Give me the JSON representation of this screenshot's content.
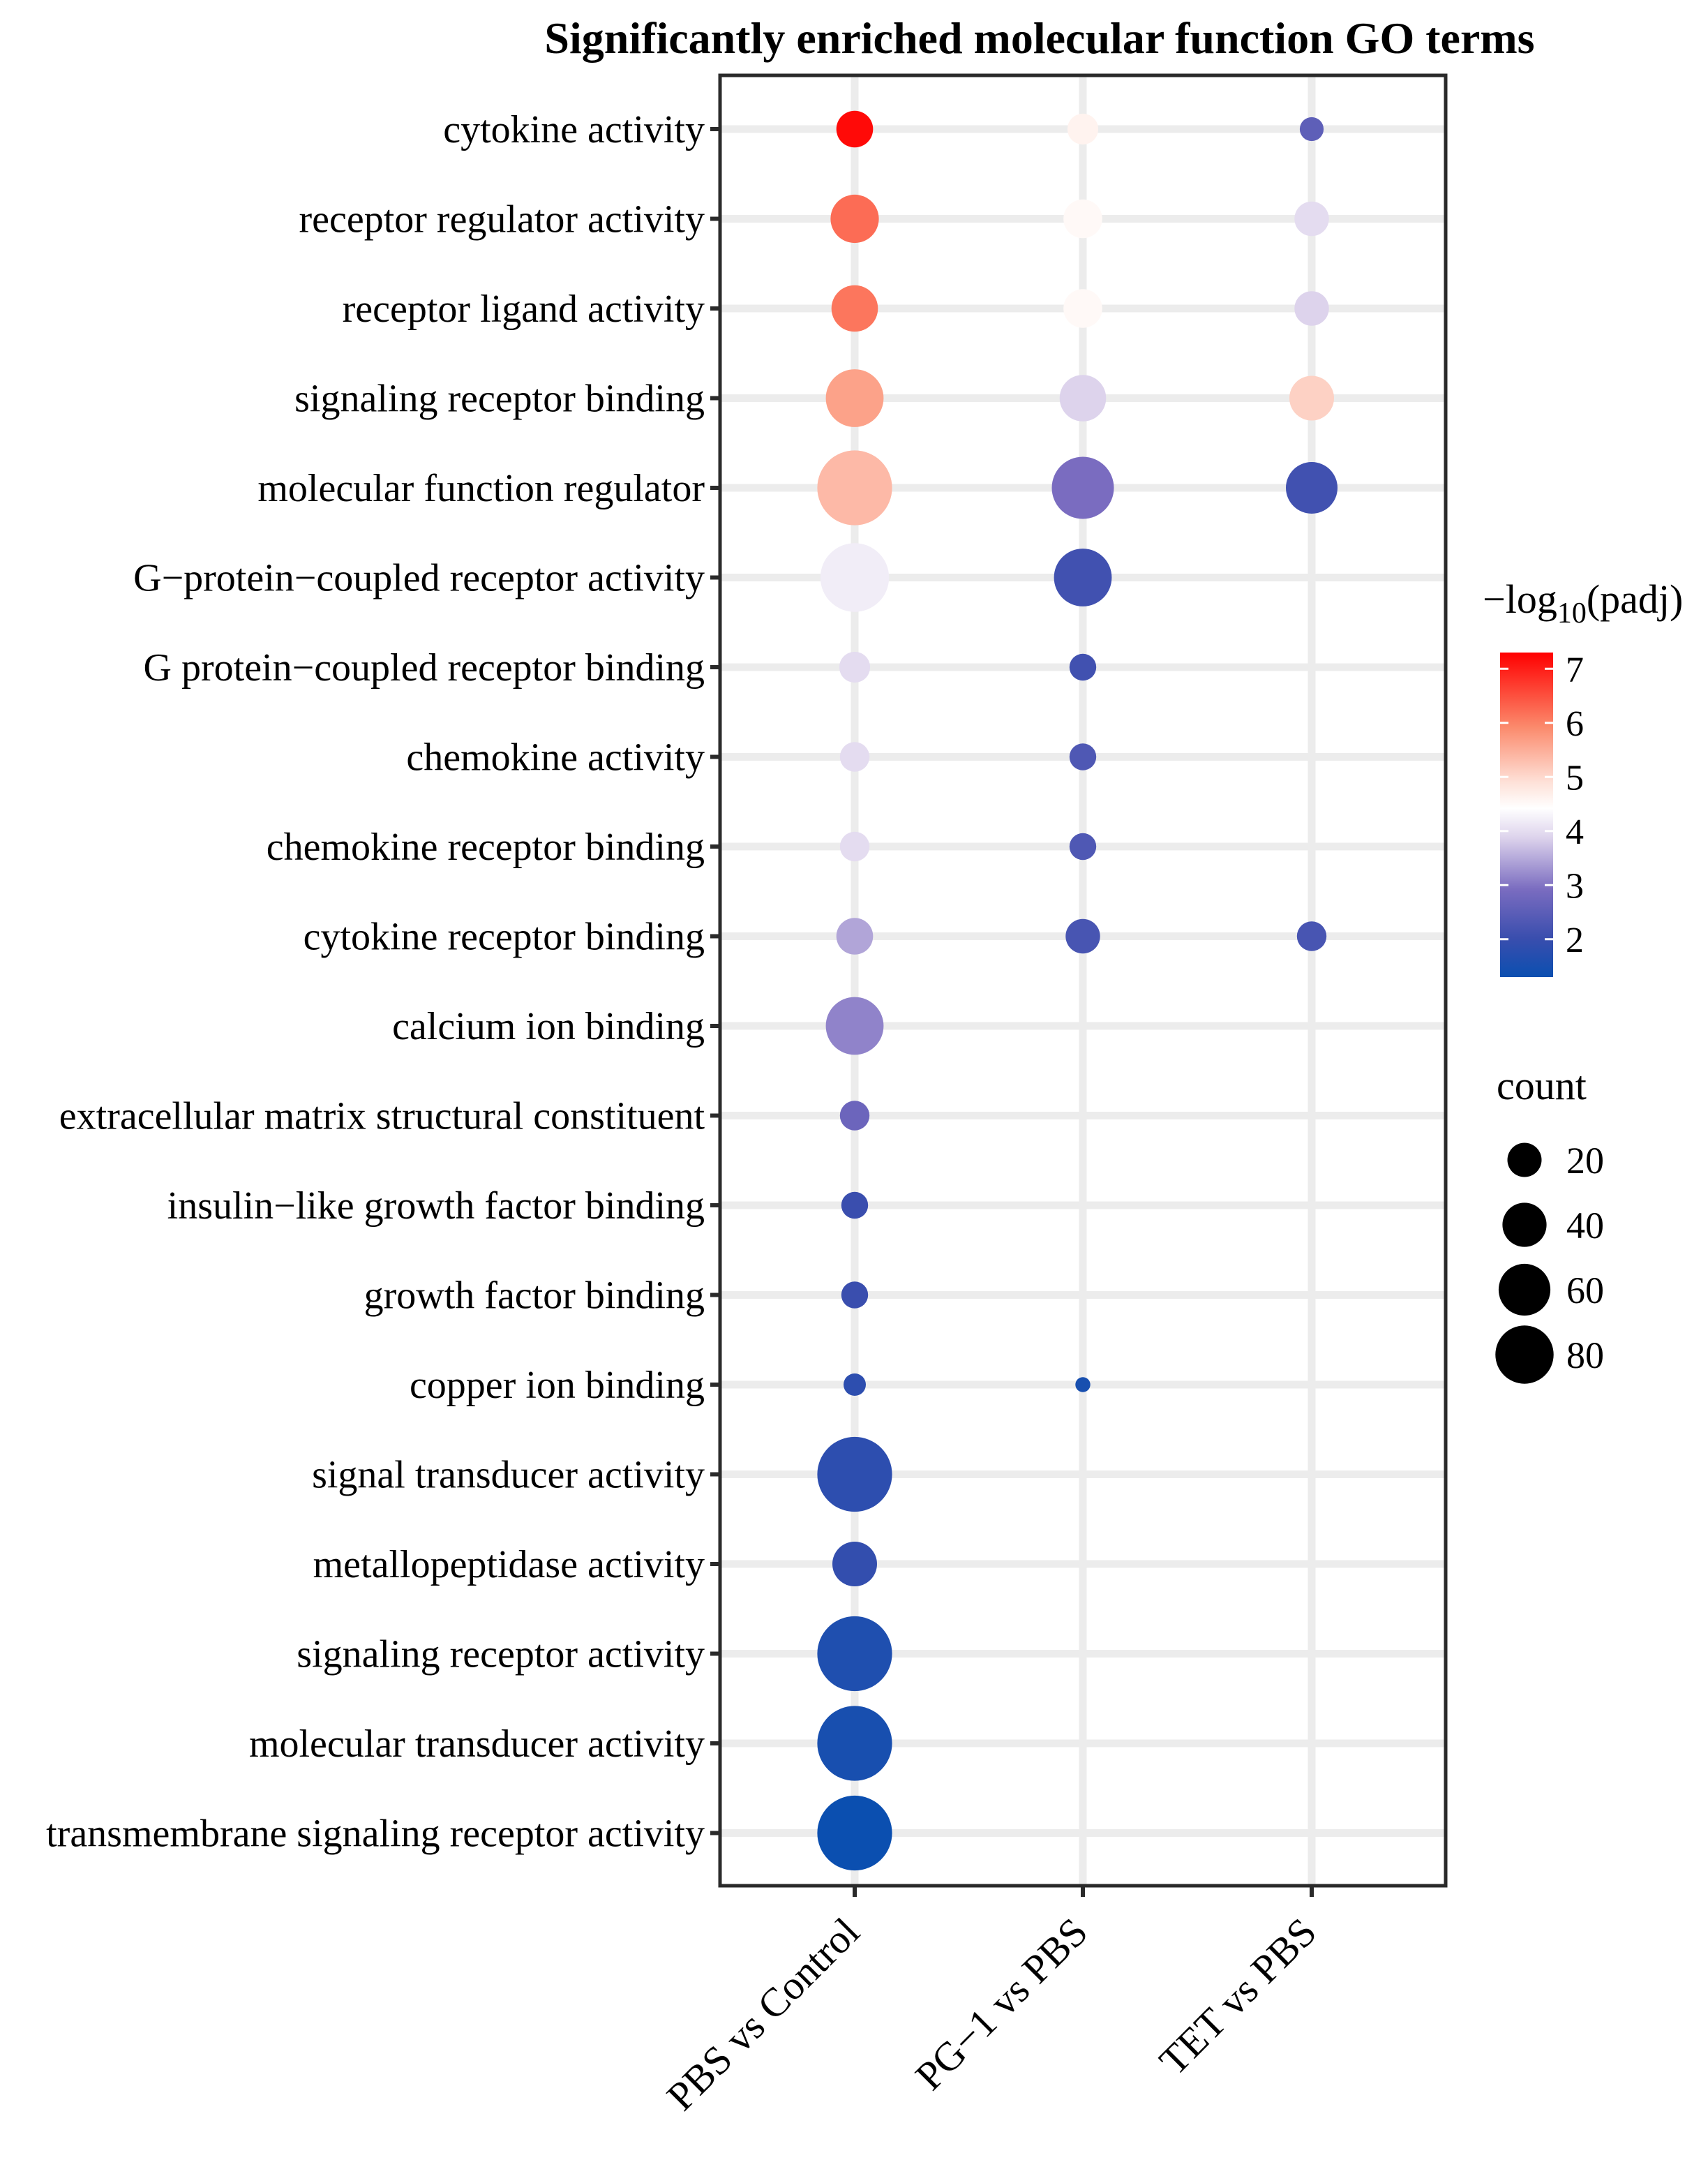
{
  "chart_data": {
    "type": "dotplot",
    "title": "Significantly enriched molecular function GO terms",
    "xlabel": "",
    "ylabel": "",
    "categories": [
      "PBS vs Control",
      "PG−1 vs PBS",
      "TET vs PBS"
    ],
    "terms": [
      "cytokine activity",
      "receptor regulator activity",
      "receptor ligand activity",
      "signaling receptor binding",
      "molecular function regulator",
      "G−protein−coupled receptor activity",
      "G protein−coupled receptor binding",
      "chemokine activity",
      "chemokine receptor binding",
      "cytokine receptor binding",
      "calcium ion binding",
      "extracellular matrix structural constituent",
      "insulin−like growth factor binding",
      "growth factor binding",
      "copper ion binding",
      "signal transducer activity",
      "metallopeptidase activity",
      "signaling receptor activity",
      "molecular transducer activity",
      "transmembrane signaling receptor activity"
    ],
    "points": [
      {
        "term": "cytokine activity",
        "group": "PBS vs Control",
        "neglog10padj": 7.2,
        "count": 20
      },
      {
        "term": "cytokine activity",
        "group": "PG−1 vs PBS",
        "neglog10padj": 4.5,
        "count": 15
      },
      {
        "term": "cytokine activity",
        "group": "TET vs PBS",
        "neglog10padj": 2.5,
        "count": 10
      },
      {
        "term": "receptor regulator activity",
        "group": "PBS vs Control",
        "neglog10padj": 6.2,
        "count": 32
      },
      {
        "term": "receptor regulator activity",
        "group": "PG−1 vs PBS",
        "neglog10padj": 4.4,
        "count": 22
      },
      {
        "term": "receptor regulator activity",
        "group": "TET vs PBS",
        "neglog10padj": 3.9,
        "count": 18
      },
      {
        "term": "receptor ligand activity",
        "group": "PBS vs Control",
        "neglog10padj": 6.1,
        "count": 30
      },
      {
        "term": "receptor ligand activity",
        "group": "PG−1 vs PBS",
        "neglog10padj": 4.4,
        "count": 22
      },
      {
        "term": "receptor ligand activity",
        "group": "TET vs PBS",
        "neglog10padj": 3.8,
        "count": 18
      },
      {
        "term": "signaling receptor binding",
        "group": "PBS vs Control",
        "neglog10padj": 5.6,
        "count": 44
      },
      {
        "term": "signaling receptor binding",
        "group": "PG−1 vs PBS",
        "neglog10padj": 3.8,
        "count": 30
      },
      {
        "term": "signaling receptor binding",
        "group": "TET vs PBS",
        "neglog10padj": 5.0,
        "count": 28
      },
      {
        "term": "molecular function regulator",
        "group": "PBS vs Control",
        "neglog10padj": 5.3,
        "count": 70
      },
      {
        "term": "molecular function regulator",
        "group": "PG−1 vs PBS",
        "neglog10padj": 2.9,
        "count": 50
      },
      {
        "term": "molecular function regulator",
        "group": "TET vs PBS",
        "neglog10padj": 2.1,
        "count": 36
      },
      {
        "term": "G−protein−coupled receptor activity",
        "group": "PBS vs Control",
        "neglog10padj": 4.1,
        "count": 60
      },
      {
        "term": "G−protein−coupled receptor activity",
        "group": "PG−1 vs PBS",
        "neglog10padj": 2.1,
        "count": 44
      },
      {
        "term": "G protein−coupled receptor binding",
        "group": "PBS vs Control",
        "neglog10padj": 3.9,
        "count": 15
      },
      {
        "term": "G protein−coupled receptor binding",
        "group": "PG−1 vs PBS",
        "neglog10padj": 2.1,
        "count": 12
      },
      {
        "term": "chemokine activity",
        "group": "PBS vs Control",
        "neglog10padj": 3.9,
        "count": 14
      },
      {
        "term": "chemokine activity",
        "group": "PG−1 vs PBS",
        "neglog10padj": 2.3,
        "count": 12
      },
      {
        "term": "chemokine receptor binding",
        "group": "PBS vs Control",
        "neglog10padj": 3.9,
        "count": 14
      },
      {
        "term": "chemokine receptor binding",
        "group": "PG−1 vs PBS",
        "neglog10padj": 2.3,
        "count": 12
      },
      {
        "term": "cytokine receptor binding",
        "group": "PBS vs Control",
        "neglog10padj": 3.4,
        "count": 20
      },
      {
        "term": "cytokine receptor binding",
        "group": "PG−1 vs PBS",
        "neglog10padj": 2.2,
        "count": 18
      },
      {
        "term": "cytokine receptor binding",
        "group": "TET vs PBS",
        "neglog10padj": 2.2,
        "count": 14
      },
      {
        "term": "calcium ion binding",
        "group": "PBS vs Control",
        "neglog10padj": 3.1,
        "count": 44
      },
      {
        "term": "extracellular matrix structural constituent",
        "group": "PBS vs Control",
        "neglog10padj": 2.7,
        "count": 14
      },
      {
        "term": "insulin−like growth factor binding",
        "group": "PBS vs Control",
        "neglog10padj": 2.0,
        "count": 12
      },
      {
        "term": "growth factor binding",
        "group": "PBS vs Control",
        "neglog10padj": 2.0,
        "count": 12
      },
      {
        "term": "copper ion binding",
        "group": "PBS vs Control",
        "neglog10padj": 1.8,
        "count": 9
      },
      {
        "term": "copper ion binding",
        "group": "PG−1 vs PBS",
        "neglog10padj": 1.5,
        "count": 5
      },
      {
        "term": "signal transducer activity",
        "group": "PBS vs Control",
        "neglog10padj": 1.8,
        "count": 70
      },
      {
        "term": "metallopeptidase activity",
        "group": "PBS vs Control",
        "neglog10padj": 1.9,
        "count": 28
      },
      {
        "term": "signaling receptor activity",
        "group": "PBS vs Control",
        "neglog10padj": 1.6,
        "count": 70
      },
      {
        "term": "molecular transducer activity",
        "group": "PBS vs Control",
        "neglog10padj": 1.5,
        "count": 70
      },
      {
        "term": "transmembrane signaling receptor activity",
        "group": "PBS vs Control",
        "neglog10padj": 1.3,
        "count": 70
      }
    ],
    "color_legend": {
      "title_prefix": "−log",
      "title_subscript": "10",
      "title_suffix": "(padj)",
      "ticks": [
        7,
        6,
        5,
        4,
        3,
        2
      ],
      "range": [
        1.3,
        7.3
      ],
      "colors": {
        "low": "#0b4fb0",
        "mid_low": "#5a4ab2",
        "mid": "#ffffff",
        "mid_high": "#fa9a80",
        "high": "#ff0000"
      }
    },
    "size_legend": {
      "title": "count",
      "values": [
        20,
        40,
        60,
        80
      ]
    },
    "panel": {
      "background": "#ffffff",
      "grid": true,
      "grid_color": "#ececec",
      "border_color": "#2a2a2a"
    }
  }
}
